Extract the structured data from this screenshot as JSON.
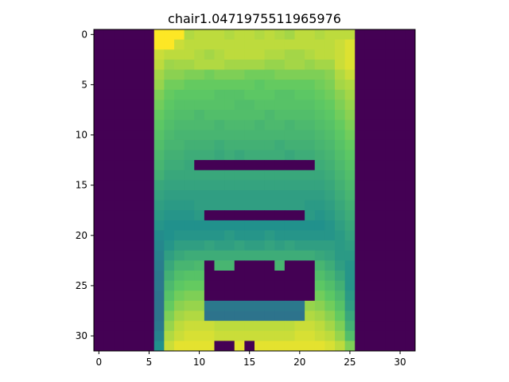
{
  "title": "chair1.0471975511965976",
  "chart_data": {
    "type": "heatmap",
    "title": "chair1.0471975511965976",
    "xlabel": "",
    "ylabel": "",
    "rows": 32,
    "cols": 32,
    "x_ticks": [
      0,
      5,
      10,
      15,
      20,
      25,
      30
    ],
    "y_ticks": [
      0,
      5,
      10,
      15,
      20,
      25,
      30
    ],
    "xlim": [
      -0.5,
      31.5
    ],
    "ylim": [
      31.5,
      -0.5
    ],
    "colormap": "viridis",
    "value_range": [
      0,
      1
    ],
    "grid": false,
    "values": [
      [
        0,
        0,
        0,
        0,
        0,
        0,
        1,
        1,
        1,
        0.88,
        0.9,
        0.9,
        0.9,
        0.88,
        0.9,
        0.9,
        0.88,
        0.9,
        0.88,
        0.86,
        0.9,
        0.9,
        0.88,
        0.9,
        0.9,
        0.9,
        0,
        0,
        0,
        0,
        0,
        0
      ],
      [
        0,
        0,
        0,
        0,
        0,
        0,
        1,
        1,
        0.92,
        0.9,
        0.9,
        0.9,
        0.9,
        0.9,
        0.9,
        0.9,
        0.9,
        0.9,
        0.9,
        0.9,
        0.9,
        0.9,
        0.9,
        0.9,
        0.92,
        0.95,
        0,
        0,
        0,
        0,
        0,
        0
      ],
      [
        0,
        0,
        0,
        0,
        0,
        0,
        0.92,
        0.9,
        0.9,
        0.9,
        0.88,
        0.86,
        0.88,
        0.9,
        0.9,
        0.9,
        0.9,
        0.88,
        0.88,
        0.86,
        0.86,
        0.88,
        0.9,
        0.9,
        0.92,
        0.95,
        0,
        0,
        0,
        0,
        0,
        0
      ],
      [
        0,
        0,
        0,
        0,
        0,
        0,
        0.9,
        0.85,
        0.86,
        0.86,
        0.88,
        0.88,
        0.88,
        0.86,
        0.86,
        0.86,
        0.86,
        0.84,
        0.84,
        0.86,
        0.86,
        0.84,
        0.86,
        0.86,
        0.92,
        0.95,
        0,
        0,
        0,
        0,
        0,
        0
      ],
      [
        0,
        0,
        0,
        0,
        0,
        0,
        0.86,
        0.82,
        0.82,
        0.8,
        0.8,
        0.78,
        0.8,
        0.8,
        0.8,
        0.78,
        0.78,
        0.78,
        0.8,
        0.8,
        0.8,
        0.8,
        0.8,
        0.82,
        0.88,
        0.92,
        0,
        0,
        0,
        0,
        0,
        0
      ],
      [
        0,
        0,
        0,
        0,
        0,
        0,
        0.84,
        0.78,
        0.78,
        0.76,
        0.76,
        0.76,
        0.76,
        0.76,
        0.76,
        0.76,
        0.74,
        0.76,
        0.76,
        0.76,
        0.76,
        0.76,
        0.78,
        0.8,
        0.86,
        0.88,
        0,
        0,
        0,
        0,
        0,
        0
      ],
      [
        0,
        0,
        0,
        0,
        0,
        0,
        0.8,
        0.76,
        0.74,
        0.74,
        0.74,
        0.74,
        0.72,
        0.72,
        0.72,
        0.74,
        0.74,
        0.74,
        0.72,
        0.72,
        0.74,
        0.74,
        0.76,
        0.78,
        0.82,
        0.86,
        0,
        0,
        0,
        0,
        0,
        0
      ],
      [
        0,
        0,
        0,
        0,
        0,
        0,
        0.78,
        0.74,
        0.72,
        0.72,
        0.72,
        0.72,
        0.72,
        0.72,
        0.7,
        0.7,
        0.72,
        0.72,
        0.72,
        0.72,
        0.72,
        0.72,
        0.74,
        0.76,
        0.8,
        0.84,
        0,
        0,
        0,
        0,
        0,
        0
      ],
      [
        0,
        0,
        0,
        0,
        0,
        0,
        0.76,
        0.72,
        0.7,
        0.7,
        0.68,
        0.7,
        0.7,
        0.7,
        0.7,
        0.7,
        0.7,
        0.68,
        0.7,
        0.7,
        0.7,
        0.7,
        0.72,
        0.74,
        0.78,
        0.82,
        0,
        0,
        0,
        0,
        0,
        0
      ],
      [
        0,
        0,
        0,
        0,
        0,
        0,
        0.74,
        0.7,
        0.68,
        0.68,
        0.68,
        0.68,
        0.66,
        0.68,
        0.68,
        0.68,
        0.66,
        0.68,
        0.68,
        0.66,
        0.68,
        0.68,
        0.7,
        0.72,
        0.76,
        0.8,
        0,
        0,
        0,
        0,
        0,
        0
      ],
      [
        0,
        0,
        0,
        0,
        0,
        0,
        0.72,
        0.68,
        0.66,
        0.66,
        0.66,
        0.66,
        0.66,
        0.66,
        0.66,
        0.66,
        0.66,
        0.66,
        0.66,
        0.66,
        0.66,
        0.66,
        0.68,
        0.7,
        0.74,
        0.78,
        0,
        0,
        0,
        0,
        0,
        0
      ],
      [
        0,
        0,
        0,
        0,
        0,
        0,
        0.7,
        0.66,
        0.66,
        0.64,
        0.64,
        0.64,
        0.62,
        0.64,
        0.64,
        0.64,
        0.64,
        0.64,
        0.62,
        0.64,
        0.64,
        0.64,
        0.66,
        0.68,
        0.72,
        0.76,
        0,
        0,
        0,
        0,
        0,
        0
      ],
      [
        0,
        0,
        0,
        0,
        0,
        0,
        0.68,
        0.64,
        0.64,
        0.62,
        0.62,
        0.62,
        0.6,
        0.62,
        0.6,
        0.62,
        0.62,
        0.62,
        0.62,
        0.6,
        0.62,
        0.62,
        0.64,
        0.66,
        0.7,
        0.74,
        0,
        0,
        0,
        0,
        0,
        0
      ],
      [
        0,
        0,
        0,
        0,
        0,
        0,
        0.66,
        0.62,
        0.62,
        0.6,
        0,
        0,
        0,
        0,
        0,
        0,
        0,
        0,
        0,
        0,
        0,
        0,
        0.62,
        0.64,
        0.68,
        0.72,
        0,
        0,
        0,
        0,
        0,
        0
      ],
      [
        0,
        0,
        0,
        0,
        0,
        0,
        0.64,
        0.6,
        0.6,
        0.6,
        0.6,
        0.6,
        0.6,
        0.6,
        0.6,
        0.6,
        0.6,
        0.6,
        0.6,
        0.6,
        0.6,
        0.6,
        0.6,
        0.62,
        0.66,
        0.7,
        0,
        0,
        0,
        0,
        0,
        0
      ],
      [
        0,
        0,
        0,
        0,
        0,
        0,
        0.6,
        0.58,
        0.58,
        0.58,
        0.58,
        0.58,
        0.58,
        0.58,
        0.58,
        0.58,
        0.58,
        0.58,
        0.58,
        0.58,
        0.58,
        0.58,
        0.58,
        0.6,
        0.64,
        0.68,
        0,
        0,
        0,
        0,
        0,
        0
      ],
      [
        0,
        0,
        0,
        0,
        0,
        0,
        0.58,
        0.56,
        0.56,
        0.56,
        0.56,
        0.56,
        0.56,
        0.56,
        0.56,
        0.56,
        0.56,
        0.56,
        0.56,
        0.56,
        0.56,
        0.56,
        0.56,
        0.58,
        0.62,
        0.66,
        0,
        0,
        0,
        0,
        0,
        0
      ],
      [
        0,
        0,
        0,
        0,
        0,
        0,
        0.56,
        0.54,
        0.54,
        0.54,
        0.56,
        0.56,
        0.56,
        0.56,
        0.56,
        0.56,
        0.56,
        0.56,
        0.56,
        0.56,
        0.56,
        0.54,
        0.54,
        0.56,
        0.6,
        0.64,
        0,
        0,
        0,
        0,
        0,
        0
      ],
      [
        0,
        0,
        0,
        0,
        0,
        0,
        0.54,
        0.52,
        0.52,
        0.52,
        0.54,
        0,
        0,
        0,
        0,
        0,
        0,
        0,
        0,
        0,
        0,
        0.54,
        0.52,
        0.54,
        0.58,
        0.62,
        0,
        0,
        0,
        0,
        0,
        0
      ],
      [
        0,
        0,
        0,
        0,
        0,
        0,
        0.52,
        0.5,
        0.5,
        0.5,
        0.5,
        0.5,
        0.5,
        0.5,
        0.5,
        0.5,
        0.5,
        0.5,
        0.5,
        0.5,
        0.5,
        0.5,
        0.5,
        0.52,
        0.56,
        0.6,
        0,
        0,
        0,
        0,
        0,
        0
      ],
      [
        0,
        0,
        0,
        0,
        0,
        0,
        0.48,
        0.5,
        0.52,
        0.52,
        0.52,
        0.52,
        0.52,
        0.54,
        0.52,
        0.52,
        0.52,
        0.54,
        0.52,
        0.52,
        0.52,
        0.52,
        0.52,
        0.52,
        0.54,
        0.58,
        0,
        0,
        0,
        0,
        0,
        0
      ],
      [
        0,
        0,
        0,
        0,
        0,
        0,
        0.46,
        0.52,
        0.56,
        0.56,
        0.56,
        0.58,
        0.56,
        0.56,
        0.58,
        0.56,
        0.56,
        0.58,
        0.56,
        0.58,
        0.56,
        0.56,
        0.56,
        0.56,
        0.54,
        0.56,
        0,
        0,
        0,
        0,
        0,
        0
      ],
      [
        0,
        0,
        0,
        0,
        0,
        0,
        0.44,
        0.56,
        0.6,
        0.62,
        0.62,
        0.62,
        0.62,
        0.62,
        0.62,
        0.62,
        0.62,
        0.62,
        0.62,
        0.62,
        0.62,
        0.62,
        0.6,
        0.58,
        0.54,
        0.54,
        0,
        0,
        0,
        0,
        0,
        0
      ],
      [
        0,
        0,
        0,
        0,
        0,
        0,
        0.42,
        0.6,
        0.66,
        0.66,
        0.68,
        0,
        0.66,
        0.66,
        0,
        0,
        0,
        0,
        0.66,
        0,
        0,
        0,
        0.66,
        0.62,
        0.56,
        0.52,
        0,
        0,
        0,
        0,
        0,
        0
      ],
      [
        0,
        0,
        0,
        0,
        0,
        0,
        0.4,
        0.64,
        0.7,
        0.72,
        0.72,
        0,
        0,
        0,
        0,
        0,
        0,
        0,
        0,
        0,
        0,
        0,
        0.7,
        0.66,
        0.6,
        0.52,
        0,
        0,
        0,
        0,
        0,
        0
      ],
      [
        0,
        0,
        0,
        0,
        0,
        0,
        0.4,
        0.68,
        0.74,
        0.76,
        0.76,
        0,
        0,
        0,
        0,
        0,
        0,
        0,
        0,
        0,
        0,
        0,
        0.74,
        0.7,
        0.64,
        0.52,
        0,
        0,
        0,
        0,
        0,
        0
      ],
      [
        0,
        0,
        0,
        0,
        0,
        0,
        0.38,
        0.72,
        0.78,
        0.8,
        0.8,
        0,
        0,
        0,
        0,
        0,
        0,
        0,
        0,
        0,
        0,
        0,
        0.78,
        0.74,
        0.68,
        0.54,
        0,
        0,
        0,
        0,
        0,
        0
      ],
      [
        0,
        0,
        0,
        0,
        0,
        0,
        0.38,
        0.76,
        0.82,
        0.84,
        0.84,
        0.4,
        0.4,
        0.4,
        0.4,
        0.4,
        0.4,
        0.4,
        0.4,
        0.4,
        0.4,
        0.84,
        0.82,
        0.78,
        0.72,
        0.56,
        0,
        0,
        0,
        0,
        0,
        0
      ],
      [
        0,
        0,
        0,
        0,
        0,
        0,
        0.38,
        0.8,
        0.86,
        0.88,
        0.88,
        0.38,
        0.38,
        0.38,
        0.38,
        0.38,
        0.38,
        0.38,
        0.38,
        0.38,
        0.38,
        0.88,
        0.86,
        0.82,
        0.76,
        0.6,
        0,
        0,
        0,
        0,
        0,
        0
      ],
      [
        0,
        0,
        0,
        0,
        0,
        0,
        0.4,
        0.84,
        0.9,
        0.92,
        0.92,
        0.92,
        0.9,
        0.9,
        0.9,
        0.9,
        0.9,
        0.9,
        0.9,
        0.9,
        0.92,
        0.92,
        0.9,
        0.86,
        0.8,
        0.64,
        0,
        0,
        0,
        0,
        0,
        0
      ],
      [
        0,
        0,
        0,
        0,
        0,
        0,
        0.44,
        0.88,
        0.92,
        0.94,
        0.94,
        0.94,
        0.92,
        0.92,
        0.92,
        0.92,
        0.92,
        0.92,
        0.92,
        0.92,
        0.94,
        0.94,
        0.92,
        0.9,
        0.84,
        0.7,
        0,
        0,
        0,
        0,
        0,
        0
      ],
      [
        0,
        0,
        0,
        0,
        0,
        0,
        0.5,
        0.92,
        0.96,
        0.96,
        0.96,
        0.96,
        0,
        0,
        0.96,
        0,
        0.96,
        0.96,
        0.96,
        0.96,
        0.96,
        0.96,
        0.96,
        0.94,
        0.9,
        0.8,
        0,
        0,
        0,
        0,
        0,
        0
      ]
    ]
  }
}
